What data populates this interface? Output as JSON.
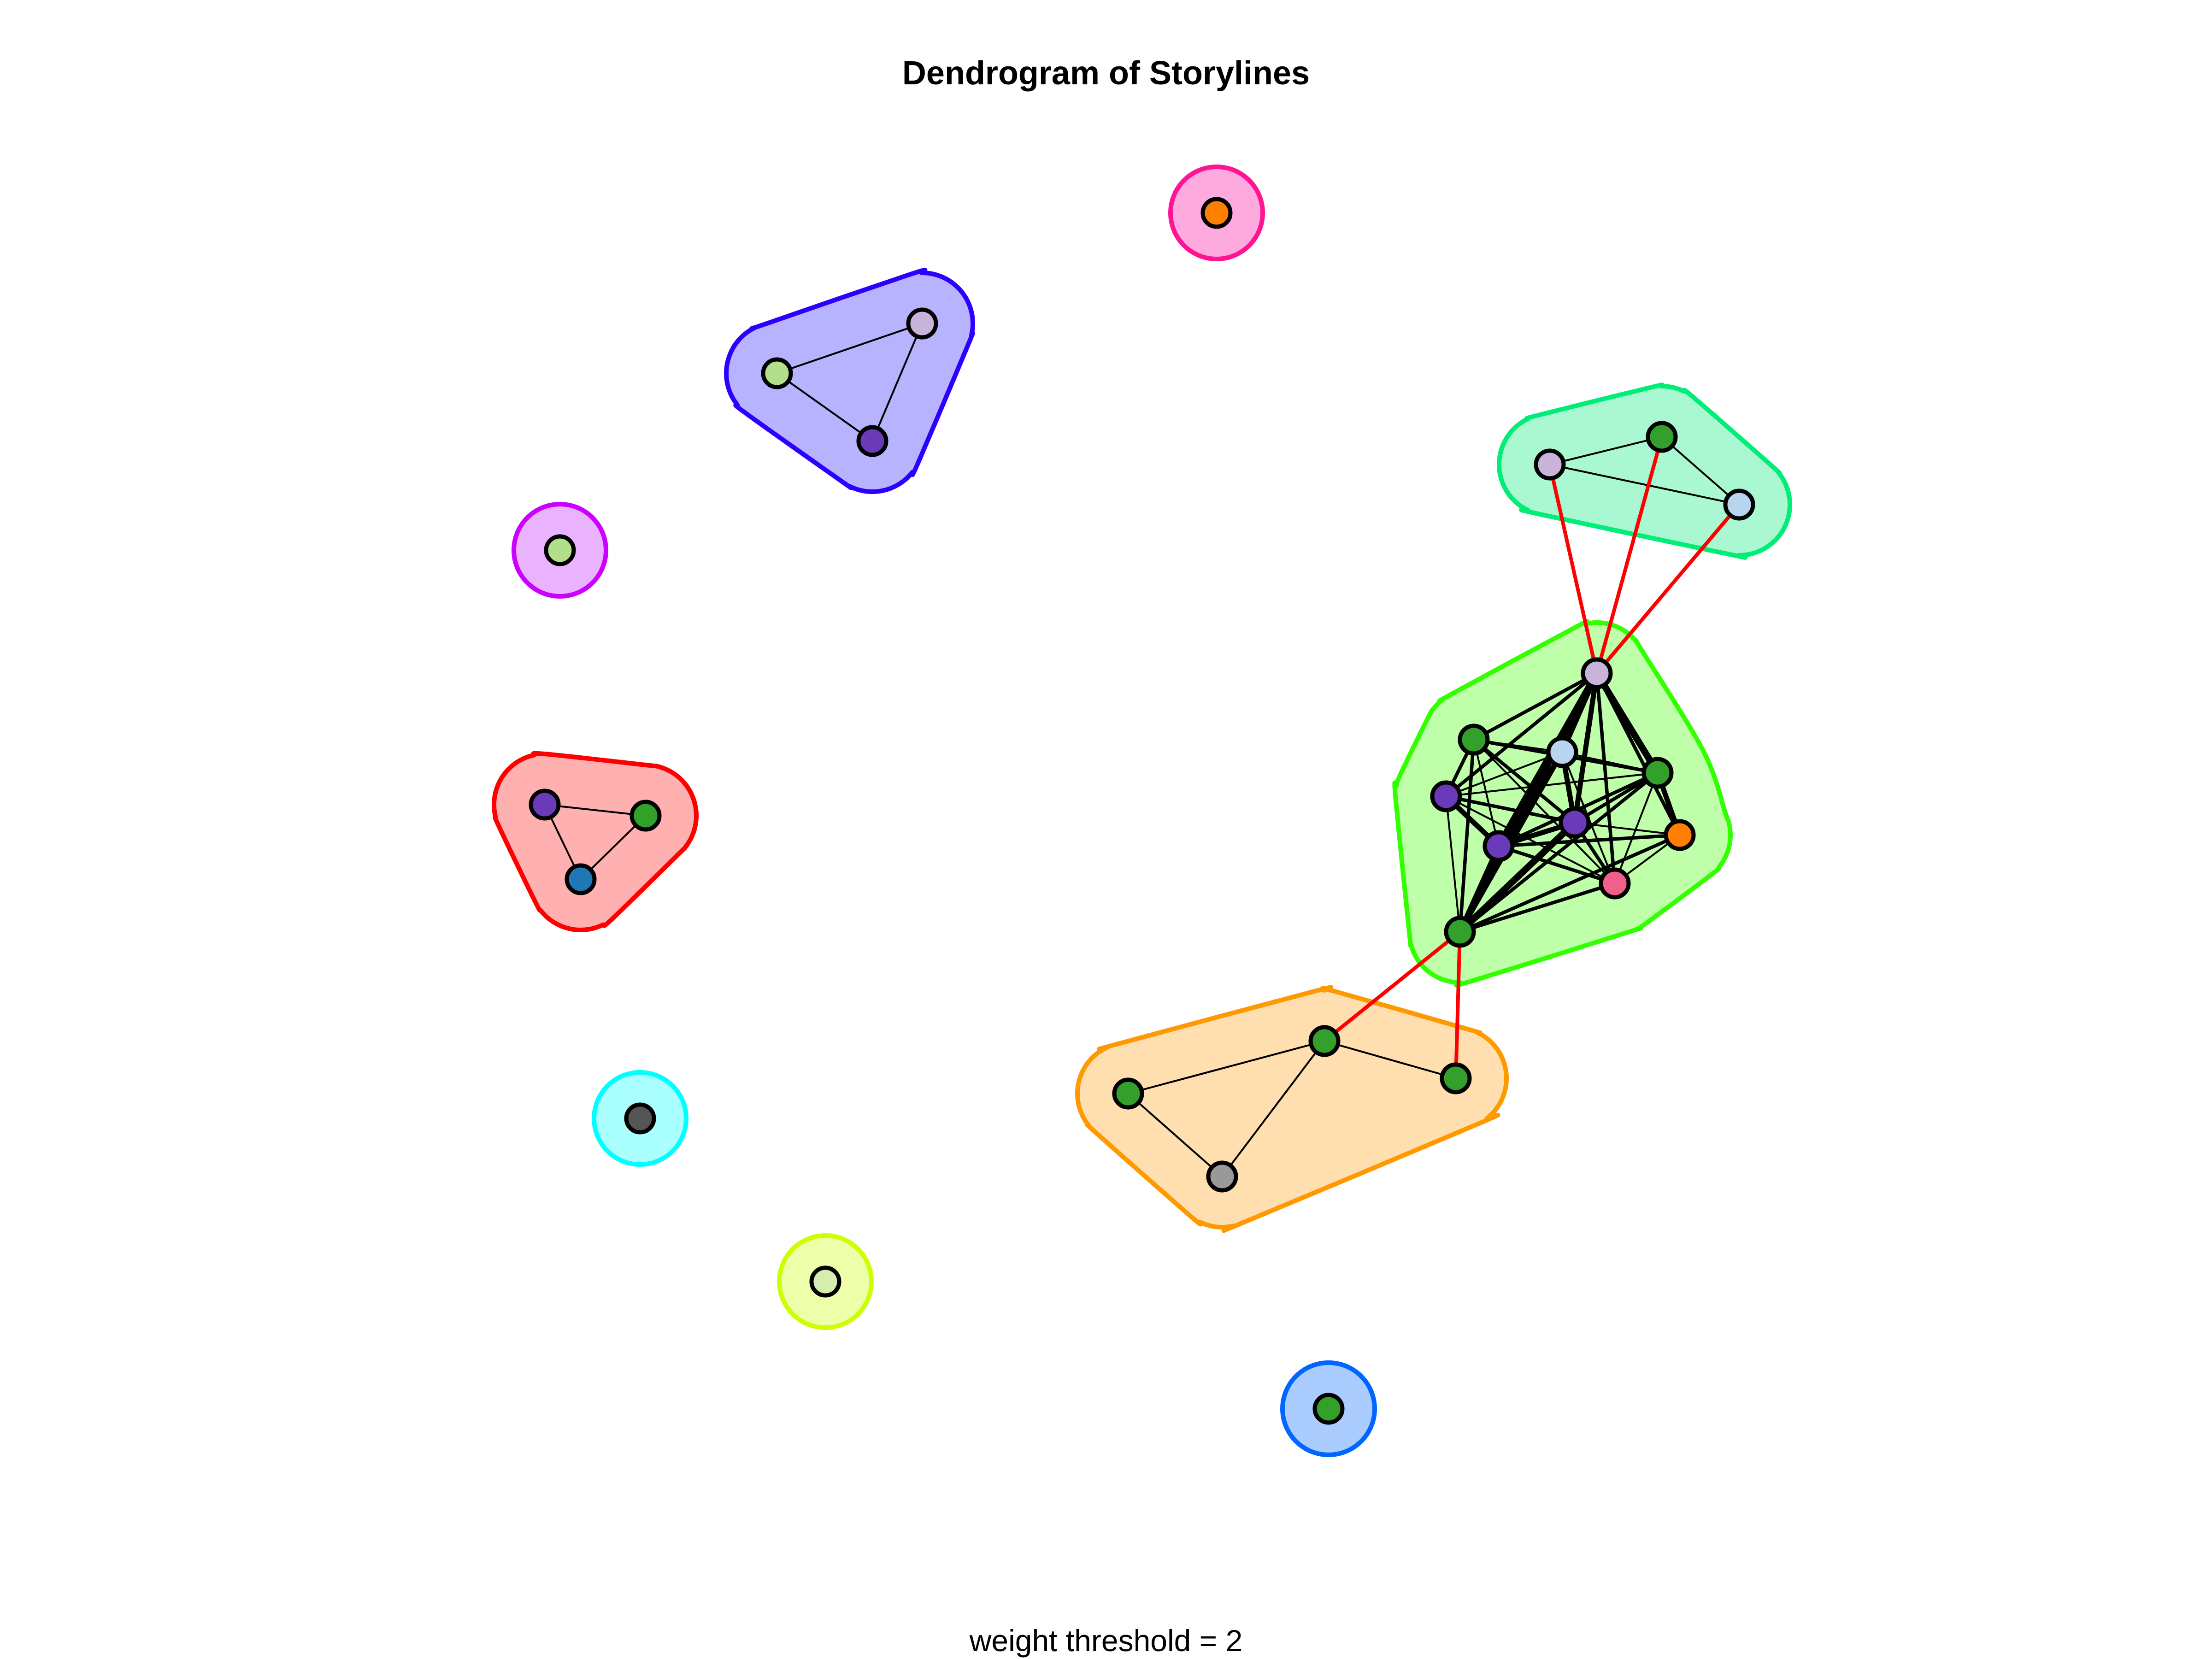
{
  "title": "Dendrogram of Storylines",
  "subtitle": "weight threshold = 2",
  "colors": {
    "edge": "#000000",
    "cross_edge": "#ff0000",
    "vertex_stroke": "#000000"
  },
  "communities": [
    {
      "id": "c-pink",
      "border": "#ff1493",
      "fill": "#ffaadf"
    },
    {
      "id": "c-blue",
      "border": "#2b00ff",
      "fill": "#b8b3ff"
    },
    {
      "id": "c-teal",
      "border": "#00ee77",
      "fill": "#aaf8d2"
    },
    {
      "id": "c-magenta",
      "border": "#cc00ff",
      "fill": "#eab3ff"
    },
    {
      "id": "c-green",
      "border": "#33ff00",
      "fill": "#bfffaa"
    },
    {
      "id": "c-red",
      "border": "#ff0000",
      "fill": "#ffb0b0"
    },
    {
      "id": "c-orange",
      "border": "#ff9900",
      "fill": "#ffdfb0"
    },
    {
      "id": "c-cyan",
      "border": "#00ffff",
      "fill": "#aaffff"
    },
    {
      "id": "c-yellow",
      "border": "#ccff00",
      "fill": "#eeffaa"
    },
    {
      "id": "c-azure",
      "border": "#0066ff",
      "fill": "#aaccff"
    }
  ],
  "vertices": [
    {
      "id": "v1",
      "community": "c-pink",
      "color": "#ff7f00"
    },
    {
      "id": "v2",
      "community": "c-blue",
      "color": "#c8b4d8"
    },
    {
      "id": "v3",
      "community": "c-blue",
      "color": "#b2df8a"
    },
    {
      "id": "v4",
      "community": "c-blue",
      "color": "#6a3ab8"
    },
    {
      "id": "v5",
      "community": "c-teal",
      "color": "#c8b4d8"
    },
    {
      "id": "v6",
      "community": "c-teal",
      "color": "#33a02c"
    },
    {
      "id": "v7",
      "community": "c-teal",
      "color": "#b8d4ee"
    },
    {
      "id": "v8",
      "community": "c-magenta",
      "color": "#b2df8a"
    },
    {
      "id": "v9",
      "community": "c-green",
      "color": "#c8b4d8"
    },
    {
      "id": "v10",
      "community": "c-green",
      "color": "#33a02c"
    },
    {
      "id": "v11",
      "community": "c-green",
      "color": "#b8d4ee"
    },
    {
      "id": "v12",
      "community": "c-green",
      "color": "#33a02c"
    },
    {
      "id": "v13",
      "community": "c-green",
      "color": "#6a3ab8"
    },
    {
      "id": "v14",
      "community": "c-green",
      "color": "#6a3ab8"
    },
    {
      "id": "v15",
      "community": "c-green",
      "color": "#ff7f00"
    },
    {
      "id": "v16",
      "community": "c-green",
      "color": "#6a3ab8"
    },
    {
      "id": "v17",
      "community": "c-green",
      "color": "#f0608a"
    },
    {
      "id": "v18",
      "community": "c-green",
      "color": "#33a02c"
    },
    {
      "id": "v19",
      "community": "c-red",
      "color": "#6a3ab8"
    },
    {
      "id": "v20",
      "community": "c-red",
      "color": "#33a02c"
    },
    {
      "id": "v21",
      "community": "c-red",
      "color": "#1f78b4"
    },
    {
      "id": "v22",
      "community": "c-orange",
      "color": "#33a02c"
    },
    {
      "id": "v23",
      "community": "c-orange",
      "color": "#33a02c"
    },
    {
      "id": "v24",
      "community": "c-orange",
      "color": "#33a02c"
    },
    {
      "id": "v25",
      "community": "c-orange",
      "color": "#999999"
    },
    {
      "id": "v26",
      "community": "c-cyan",
      "color": "#555555"
    },
    {
      "id": "v27",
      "community": "c-yellow",
      "color": "#d4eeb0"
    },
    {
      "id": "v28",
      "community": "c-azure",
      "color": "#33a02c"
    }
  ],
  "edges": [
    {
      "a": "v2",
      "b": "v3",
      "w": 2
    },
    {
      "a": "v2",
      "b": "v4",
      "w": 2
    },
    {
      "a": "v3",
      "b": "v4",
      "w": 2
    },
    {
      "a": "v5",
      "b": "v6",
      "w": 2
    },
    {
      "a": "v5",
      "b": "v7",
      "w": 2
    },
    {
      "a": "v6",
      "b": "v7",
      "w": 2
    },
    {
      "a": "v19",
      "b": "v20",
      "w": 2
    },
    {
      "a": "v19",
      "b": "v21",
      "w": 2
    },
    {
      "a": "v20",
      "b": "v21",
      "w": 2
    },
    {
      "a": "v22",
      "b": "v23",
      "w": 2
    },
    {
      "a": "v22",
      "b": "v25",
      "w": 2
    },
    {
      "a": "v23",
      "b": "v25",
      "w": 2
    },
    {
      "a": "v23",
      "b": "v24",
      "w": 2
    },
    {
      "a": "v9",
      "b": "v10",
      "w": 3
    },
    {
      "a": "v9",
      "b": "v11",
      "w": 4
    },
    {
      "a": "v9",
      "b": "v12",
      "w": 5
    },
    {
      "a": "v9",
      "b": "v13",
      "w": 3
    },
    {
      "a": "v9",
      "b": "v14",
      "w": 4
    },
    {
      "a": "v9",
      "b": "v15",
      "w": 3
    },
    {
      "a": "v9",
      "b": "v16",
      "w": 5
    },
    {
      "a": "v9",
      "b": "v17",
      "w": 3
    },
    {
      "a": "v9",
      "b": "v18",
      "w": 4
    },
    {
      "a": "v10",
      "b": "v11",
      "w": 2
    },
    {
      "a": "v10",
      "b": "v12",
      "w": 3
    },
    {
      "a": "v10",
      "b": "v13",
      "w": 3
    },
    {
      "a": "v10",
      "b": "v14",
      "w": 3
    },
    {
      "a": "v10",
      "b": "v16",
      "w": 2
    },
    {
      "a": "v10",
      "b": "v17",
      "w": 2
    },
    {
      "a": "v10",
      "b": "v18",
      "w": 3
    },
    {
      "a": "v11",
      "b": "v12",
      "w": 2
    },
    {
      "a": "v11",
      "b": "v13",
      "w": 2
    },
    {
      "a": "v11",
      "b": "v14",
      "w": 4
    },
    {
      "a": "v11",
      "b": "v16",
      "w": 3
    },
    {
      "a": "v11",
      "b": "v17",
      "w": 2
    },
    {
      "a": "v11",
      "b": "v18",
      "w": 4
    },
    {
      "a": "v12",
      "b": "v13",
      "w": 2
    },
    {
      "a": "v12",
      "b": "v14",
      "w": 3
    },
    {
      "a": "v12",
      "b": "v15",
      "w": 4
    },
    {
      "a": "v12",
      "b": "v16",
      "w": 3
    },
    {
      "a": "v12",
      "b": "v17",
      "w": 2
    },
    {
      "a": "v12",
      "b": "v18",
      "w": 3
    },
    {
      "a": "v13",
      "b": "v14",
      "w": 3
    },
    {
      "a": "v13",
      "b": "v16",
      "w": 4
    },
    {
      "a": "v13",
      "b": "v17",
      "w": 2
    },
    {
      "a": "v13",
      "b": "v18",
      "w": 2
    },
    {
      "a": "v14",
      "b": "v15",
      "w": 2
    },
    {
      "a": "v14",
      "b": "v16",
      "w": 4
    },
    {
      "a": "v14",
      "b": "v17",
      "w": 3
    },
    {
      "a": "v14",
      "b": "v18",
      "w": 5
    },
    {
      "a": "v15",
      "b": "v16",
      "w": 3
    },
    {
      "a": "v15",
      "b": "v17",
      "w": 2
    },
    {
      "a": "v15",
      "b": "v18",
      "w": 3
    },
    {
      "a": "v16",
      "b": "v17",
      "w": 3
    },
    {
      "a": "v16",
      "b": "v18",
      "w": 4
    },
    {
      "a": "v17",
      "b": "v18",
      "w": 3
    }
  ],
  "cross_edges": [
    {
      "a": "v9",
      "b": "v5"
    },
    {
      "a": "v9",
      "b": "v6"
    },
    {
      "a": "v9",
      "b": "v7"
    },
    {
      "a": "v18",
      "b": "v23"
    },
    {
      "a": "v18",
      "b": "v24"
    }
  ]
}
